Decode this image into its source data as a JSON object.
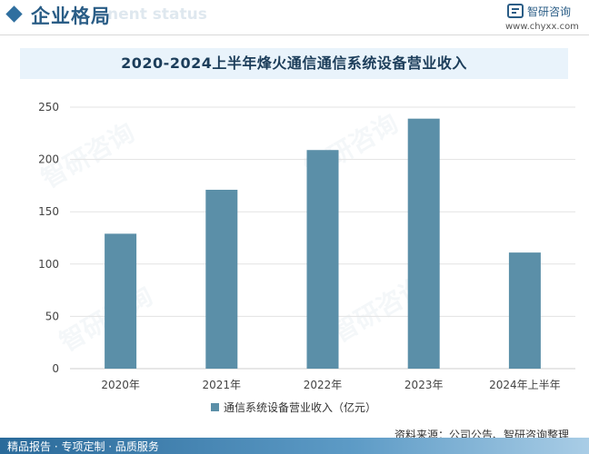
{
  "header": {
    "title": "企业格局",
    "ghost_text": "nent status",
    "brand": "智研咨询",
    "url": "www.chyxx.com"
  },
  "chart_data": {
    "type": "bar",
    "title": "2020-2024上半年烽火通信通信系统设备营业收入",
    "categories": [
      "2020年",
      "2021年",
      "2022年",
      "2023年",
      "2024年上半年"
    ],
    "series": [
      {
        "name": "通信系统设备营业收入（亿元）",
        "values": [
          129,
          171,
          209,
          239,
          111
        ]
      }
    ],
    "ylim": [
      0,
      250
    ],
    "yticks": [
      0,
      50,
      100,
      150,
      200,
      250
    ],
    "grid": true,
    "legend": "bottom",
    "color": "#5b8fa8"
  },
  "footer": {
    "source": "资料来源：公司公告、智研咨询整理",
    "tagline": "精品报告 · 专项定制 · 品质服务"
  }
}
